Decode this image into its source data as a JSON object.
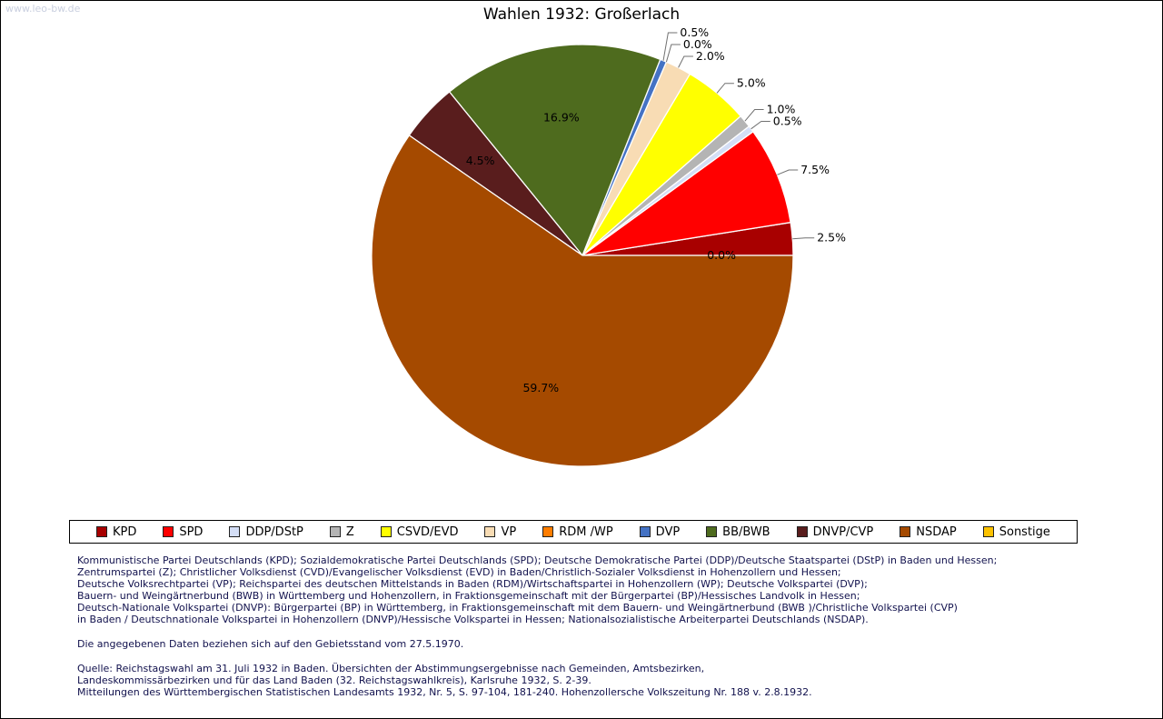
{
  "watermark": "www.leo-bw.de",
  "title": "Wahlen 1932: Großerlach",
  "chart_data": {
    "type": "pie",
    "title": "Wahlen 1932: Großerlach",
    "start_angle_deg": 0,
    "direction": "counterclockwise",
    "total_percent": 100.1,
    "slices": [
      {
        "label": "KPD",
        "value": 2.5,
        "display": "2.5%",
        "color": "#a80000",
        "label_placement": "outside"
      },
      {
        "label": "SPD",
        "value": 7.5,
        "display": "7.5%",
        "color": "#ff0000",
        "label_placement": "outside"
      },
      {
        "label": "DDP/DStP",
        "value": 0.5,
        "display": "0.5%",
        "color": "#d4def6",
        "label_placement": "outside"
      },
      {
        "label": "Z",
        "value": 1.0,
        "display": "1.0%",
        "color": "#b4b4b4",
        "label_placement": "outside"
      },
      {
        "label": "CSVD/EVD",
        "value": 5.0,
        "display": "5.0%",
        "color": "#ffff00",
        "label_placement": "outside"
      },
      {
        "label": "VP",
        "value": 2.0,
        "display": "2.0%",
        "color": "#f8dcb4",
        "label_placement": "outside"
      },
      {
        "label": "RDM /WP",
        "value": 0.0,
        "display": "0.0%",
        "color": "#ff7d00",
        "label_placement": "outside"
      },
      {
        "label": "DVP",
        "value": 0.5,
        "display": "0.5%",
        "color": "#4472c4",
        "label_placement": "outside"
      },
      {
        "label": "BB/BWB",
        "value": 16.9,
        "display": "16.9%",
        "color": "#4e6b1e",
        "label_placement": "inside"
      },
      {
        "label": "DNVP/CVP",
        "value": 4.5,
        "display": "4.5%",
        "color": "#591d1d",
        "label_placement": "inside"
      },
      {
        "label": "NSDAP",
        "value": 59.7,
        "display": "59.7%",
        "color": "#a54a00",
        "label_placement": "inside"
      },
      {
        "label": "Sonstige",
        "value": 0.0,
        "display": "0.0%",
        "color": "#fcc200",
        "label_placement": "inside"
      }
    ]
  },
  "footnotes": {
    "parties_lines": [
      "Kommunistische Partei Deutschlands (KPD); Sozialdemokratische Partei Deutschlands (SPD); Deutsche Demokratische Partei (DDP)/Deutsche Staatspartei (DStP) in Baden und Hessen;",
      "Zentrumspartei (Z); Christlicher Volksdienst (CVD)/Evangelischer Volksdienst (EVD) in Baden/Christlich-Sozialer Volksdienst in Hohenzollern und Hessen;",
      "Deutsche Volksrechtpartei (VP); Reichspartei des deutschen Mittelstands in Baden (RDM)/Wirtschaftspartei in Hohenzollern (WP); Deutsche Volkspartei (DVP);",
      "Bauern- und Weingärtnerbund (BWB) in Württemberg und Hohenzollern, in Fraktionsgemeinschaft mit der Bürgerpartei (BP)/Hessisches Landvolk in Hessen;",
      "Deutsch-Nationale Volkspartei (DNVP): Bürgerpartei (BP) in Württemberg, in Fraktionsgemeinschaft mit dem Bauern- und Weingärtnerbund (BWB )/Christliche Volkspartei (CVP)",
      "in Baden / Deutschnationale Volkspartei in Hohenzollern (DNVP)/Hessische Volkspartei in Hessen; Nationalsozialistische Arbeiterpartei Deutschlands (NSDAP)."
    ],
    "gebietsstand": "Die angegebenen Daten beziehen sich auf den Gebietsstand vom 27.5.1970.",
    "quelle_lines": [
      "Quelle: Reichstagswahl am 31. Juli 1932 in Baden. Übersichten der Abstimmungsergebnisse nach Gemeinden, Amtsbezirken,",
      "Landeskommissärbezirken und für das Land Baden (32. Reichstagswahlkreis), Karlsruhe 1932, S. 2-39.",
      "Mitteilungen des Württembergischen Statistischen Landesamts 1932, Nr. 5, S. 97-104, 181-240. Hohenzollersche Volkszeitung Nr. 188 v. 2.8.1932."
    ]
  }
}
